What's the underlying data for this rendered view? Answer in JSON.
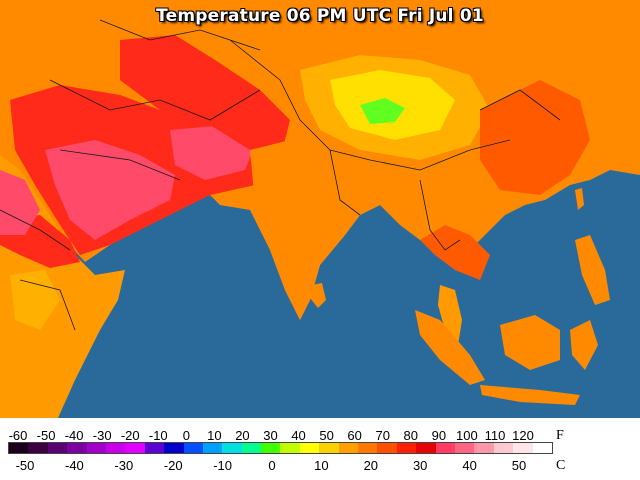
{
  "title": "Temperature 06 PM UTC Fri Jul 01",
  "legend": {
    "fahrenheit_ticks": [
      "-60",
      "-50",
      "-40",
      "-30",
      "-20",
      "-10",
      "0",
      "10",
      "20",
      "30",
      "40",
      "50",
      "60",
      "70",
      "80",
      "90",
      "100",
      "110",
      "120"
    ],
    "celsius_ticks": [
      "-50",
      "-40",
      "-30",
      "-20",
      "-10",
      "0",
      "10",
      "20",
      "30",
      "40",
      "50"
    ],
    "fahrenheit_unit": "F",
    "celsius_unit": "C",
    "colors": [
      "#1a001a",
      "#3a0040",
      "#5a0070",
      "#7a00a0",
      "#a000c8",
      "#c800e6",
      "#e000ff",
      "#5a00d0",
      "#0000c8",
      "#0050ff",
      "#00a0ff",
      "#00e0e0",
      "#00ff90",
      "#40ff00",
      "#c0ff00",
      "#ffff00",
      "#ffd000",
      "#ffa000",
      "#ff7800",
      "#ff5000",
      "#ff2000",
      "#e60000",
      "#ff3c64",
      "#ff6482",
      "#ff96aa",
      "#ffc8d2",
      "#ffe6ea",
      "#ffffff"
    ]
  },
  "map": {
    "ocean_color": "#2a6a9a",
    "land_colors": {
      "hot": "#ff2a1a",
      "very_hot": "#ff4a6a",
      "warm": "#ff8a00",
      "mild": "#ffb000",
      "cool": "#ffe000",
      "coolest": "#60ff20"
    }
  }
}
